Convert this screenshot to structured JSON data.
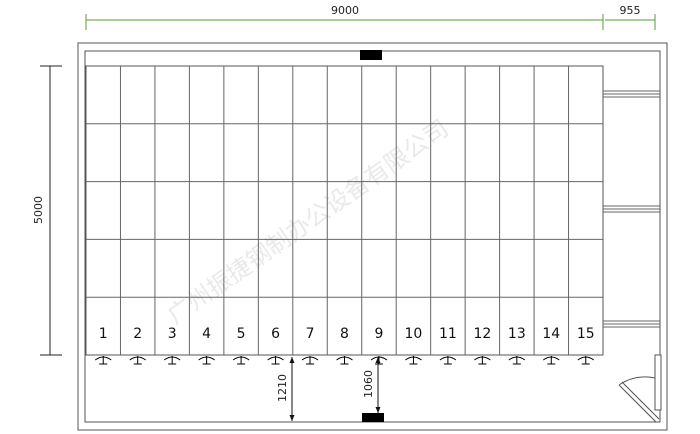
{
  "dimensions": {
    "width_main": "9000",
    "width_side": "955",
    "height": "5000",
    "aisle_left": "1210",
    "aisle_right": "1060"
  },
  "columns": [
    "1",
    "2",
    "3",
    "4",
    "5",
    "6",
    "7",
    "8",
    "9",
    "10",
    "11",
    "12",
    "13",
    "14",
    "15"
  ],
  "rows": 5,
  "watermark": "广州振捷钢制办公设备有限公司",
  "colors": {
    "dimension_line": "#5a9a3a",
    "wall": "#444444",
    "fixture": "#000000"
  }
}
